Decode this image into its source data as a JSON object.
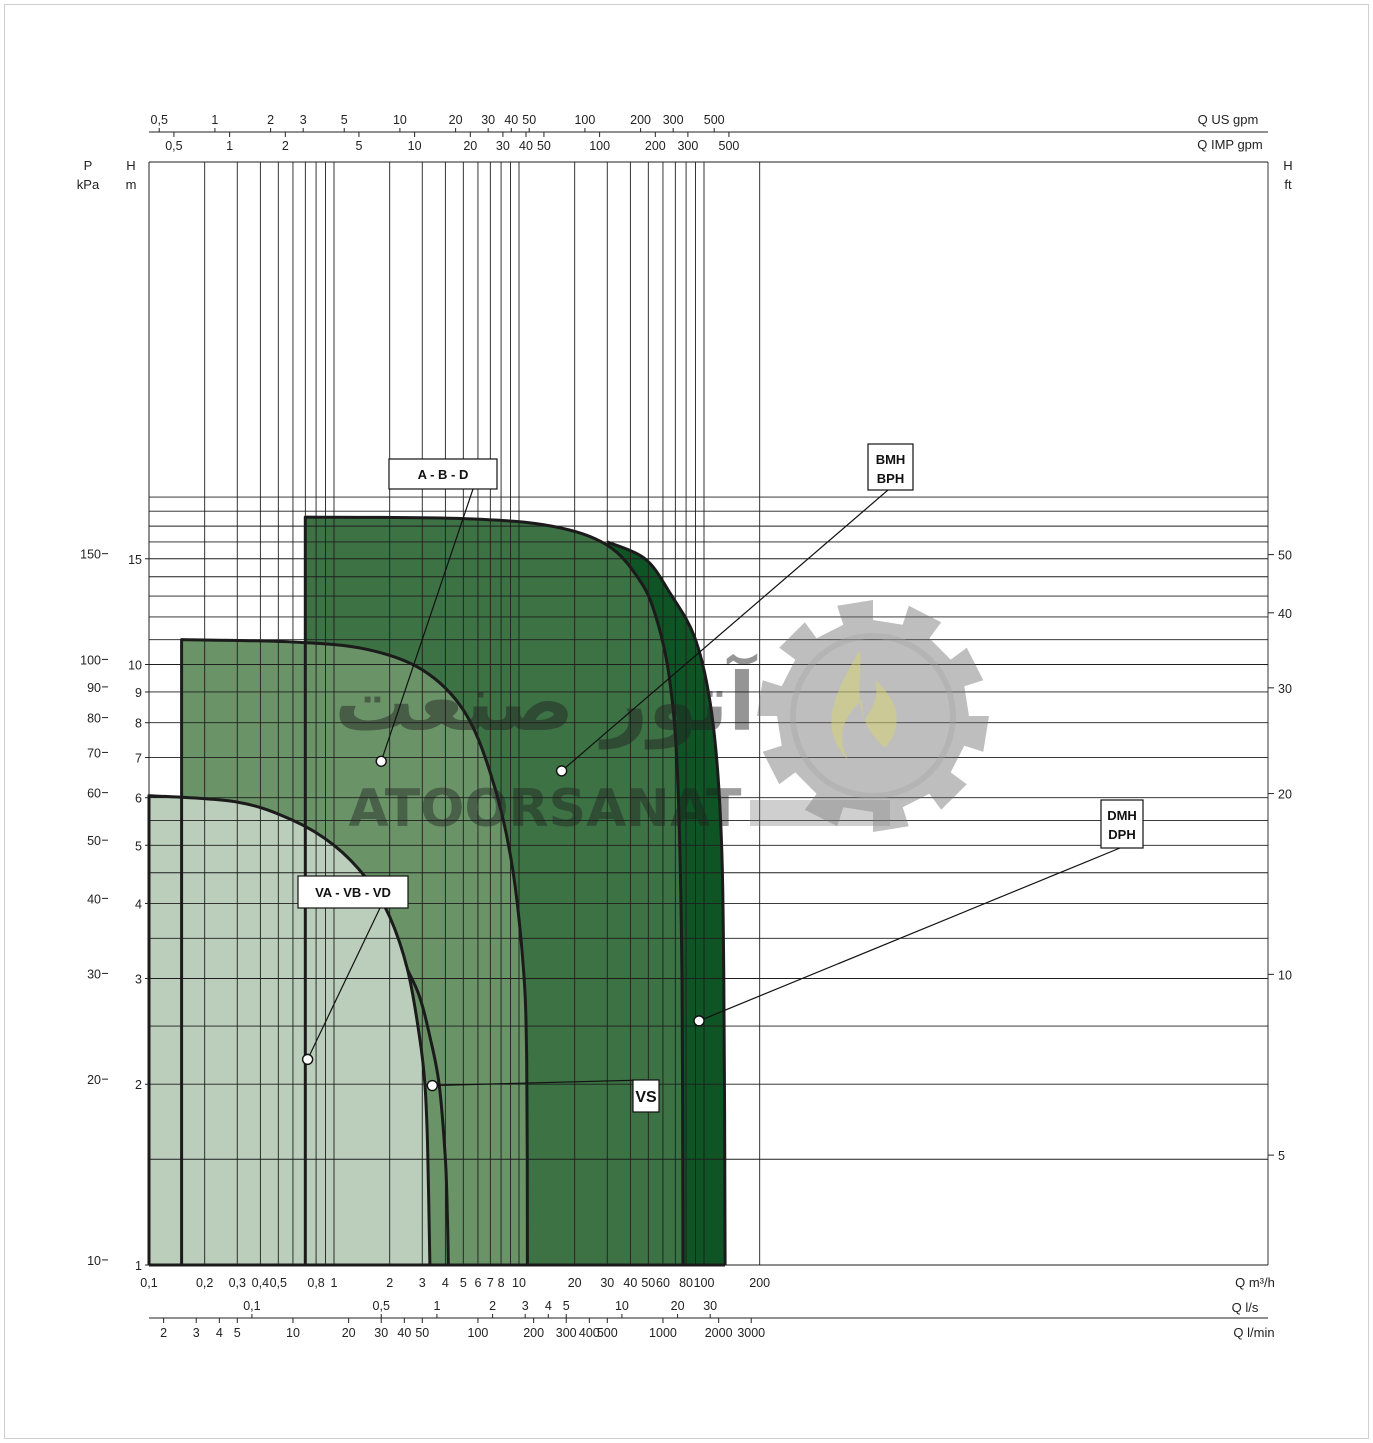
{
  "chart_data": {
    "type": "area",
    "title": "",
    "x_scale": "log",
    "y_scale": "log",
    "xlim": [
      0.1,
      250
    ],
    "ylim": [
      1,
      19
    ],
    "grid": true,
    "axes": {
      "bottom_primary": {
        "label": "Q m³/h",
        "ticks": [
          {
            "v": 0.1,
            "l": "0,1"
          },
          {
            "v": 0.2,
            "l": "0,2"
          },
          {
            "v": 0.3,
            "l": "0,3"
          },
          {
            "v": 0.4,
            "l": "0,4"
          },
          {
            "v": 0.5,
            "l": "0,5"
          },
          {
            "v": 0.8,
            "l": "0,8"
          },
          {
            "v": 1,
            "l": "1"
          },
          {
            "v": 2,
            "l": "2"
          },
          {
            "v": 3,
            "l": "3"
          },
          {
            "v": 4,
            "l": "4"
          },
          {
            "v": 5,
            "l": "5"
          },
          {
            "v": 6,
            "l": "6"
          },
          {
            "v": 7,
            "l": "7"
          },
          {
            "v": 8,
            "l": "8"
          },
          {
            "v": 10,
            "l": "10"
          },
          {
            "v": 20,
            "l": "20"
          },
          {
            "v": 30,
            "l": "30"
          },
          {
            "v": 40,
            "l": "40"
          },
          {
            "v": 50,
            "l": "50"
          },
          {
            "v": 60,
            "l": "60"
          },
          {
            "v": 80,
            "l": "80"
          },
          {
            "v": 100,
            "l": "100"
          },
          {
            "v": 200,
            "l": "200"
          }
        ]
      },
      "bottom_ls": {
        "label": "Q l/s",
        "ticks": [
          {
            "v": 0.1,
            "l": "0,1"
          },
          {
            "v": 0.5,
            "l": "0,5"
          },
          {
            "v": 1,
            "l": "1"
          },
          {
            "v": 2,
            "l": "2"
          },
          {
            "v": 3,
            "l": "3"
          },
          {
            "v": 4,
            "l": "4"
          },
          {
            "v": 5,
            "l": "5"
          },
          {
            "v": 10,
            "l": "10"
          },
          {
            "v": 20,
            "l": "20"
          },
          {
            "v": 30,
            "l": "30"
          }
        ]
      },
      "bottom_lmin": {
        "label": "Q l/min",
        "ticks": [
          {
            "v": 2,
            "l": "2"
          },
          {
            "v": 3,
            "l": "3"
          },
          {
            "v": 4,
            "l": "4"
          },
          {
            "v": 5,
            "l": "5"
          },
          {
            "v": 10,
            "l": "10"
          },
          {
            "v": 20,
            "l": "20"
          },
          {
            "v": 30,
            "l": "30"
          },
          {
            "v": 40,
            "l": "40"
          },
          {
            "v": 50,
            "l": "50"
          },
          {
            "v": 100,
            "l": "100"
          },
          {
            "v": 200,
            "l": "200"
          },
          {
            "v": 300,
            "l": "300"
          },
          {
            "v": 400,
            "l": "400"
          },
          {
            "v": 500,
            "l": "500"
          },
          {
            "v": 1000,
            "l": "1000"
          },
          {
            "v": 2000,
            "l": "2000"
          },
          {
            "v": 3000,
            "l": "3000"
          }
        ]
      },
      "top_us_gpm": {
        "label": "Q US gpm",
        "ticks": [
          {
            "v": 0.5,
            "l": "0,5"
          },
          {
            "v": 1,
            "l": "1"
          },
          {
            "v": 2,
            "l": "2"
          },
          {
            "v": 3,
            "l": "3"
          },
          {
            "v": 5,
            "l": "5"
          },
          {
            "v": 10,
            "l": "10"
          },
          {
            "v": 20,
            "l": "20"
          },
          {
            "v": 30,
            "l": "30"
          },
          {
            "v": 40,
            "l": "40"
          },
          {
            "v": 50,
            "l": "50"
          },
          {
            "v": 100,
            "l": "100"
          },
          {
            "v": 200,
            "l": "200"
          },
          {
            "v": 300,
            "l": "300"
          },
          {
            "v": 500,
            "l": "500"
          }
        ]
      },
      "top_imp_gpm": {
        "label": "Q IMP gpm",
        "ticks": [
          {
            "v": 0.5,
            "l": "0,5"
          },
          {
            "v": 1,
            "l": "1"
          },
          {
            "v": 2,
            "l": "2"
          },
          {
            "v": 5,
            "l": "5"
          },
          {
            "v": 10,
            "l": "10"
          },
          {
            "v": 20,
            "l": "20"
          },
          {
            "v": 30,
            "l": "30"
          },
          {
            "v": 40,
            "l": "40"
          },
          {
            "v": 50,
            "l": "50"
          },
          {
            "v": 100,
            "l": "100"
          },
          {
            "v": 200,
            "l": "200"
          },
          {
            "v": 300,
            "l": "300"
          },
          {
            "v": 500,
            "l": "500"
          }
        ]
      },
      "left_m": {
        "label_top": "H",
        "label_bottom": "m",
        "ticks": [
          {
            "v": 1,
            "l": "1"
          },
          {
            "v": 2,
            "l": "2"
          },
          {
            "v": 3,
            "l": "3"
          },
          {
            "v": 4,
            "l": "4"
          },
          {
            "v": 5,
            "l": "5"
          },
          {
            "v": 6,
            "l": "6"
          },
          {
            "v": 7,
            "l": "7"
          },
          {
            "v": 8,
            "l": "8"
          },
          {
            "v": 9,
            "l": "9"
          },
          {
            "v": 10,
            "l": "10"
          },
          {
            "v": 15,
            "l": "15"
          }
        ]
      },
      "left_kpa": {
        "label_top": "P",
        "label_bottom": "kPa",
        "ticks": [
          {
            "v": 10,
            "l": "10"
          },
          {
            "v": 20,
            "l": "20"
          },
          {
            "v": 30,
            "l": "30"
          },
          {
            "v": 40,
            "l": "40"
          },
          {
            "v": 50,
            "l": "50"
          },
          {
            "v": 60,
            "l": "60"
          },
          {
            "v": 70,
            "l": "70"
          },
          {
            "v": 80,
            "l": "80"
          },
          {
            "v": 90,
            "l": "90"
          },
          {
            "v": 100,
            "l": "100"
          },
          {
            "v": 150,
            "l": "150"
          }
        ]
      },
      "right_ft": {
        "label_top": "H",
        "label_bottom": "ft",
        "ticks": [
          {
            "v": 5,
            "l": "5"
          },
          {
            "v": 10,
            "l": "10"
          },
          {
            "v": 20,
            "l": "20"
          },
          {
            "v": 30,
            "l": "30"
          },
          {
            "v": 40,
            "l": "40"
          },
          {
            "v": 50,
            "l": "50"
          }
        ]
      }
    },
    "series": [
      {
        "name": "VA - VB - VD",
        "color": "#bacebb",
        "points": [
          [
            0.1,
            6.05
          ],
          [
            0.3,
            5.9
          ],
          [
            0.6,
            5.5
          ],
          [
            1.0,
            5.0
          ],
          [
            1.5,
            4.4
          ],
          [
            2.0,
            3.8
          ],
          [
            2.5,
            3.1
          ],
          [
            2.9,
            2.4
          ],
          [
            3.1,
            2.0
          ],
          [
            3.2,
            1.6
          ],
          [
            3.3,
            1.0
          ]
        ]
      },
      {
        "name": "A - B - D",
        "color": "#6a9468",
        "points": [
          [
            0.15,
            11.0
          ],
          [
            0.6,
            10.9
          ],
          [
            1.5,
            10.6
          ],
          [
            3.0,
            9.8
          ],
          [
            5.0,
            8.4
          ],
          [
            7.0,
            6.6
          ],
          [
            9.0,
            4.8
          ],
          [
            10.5,
            3.2
          ],
          [
            11.0,
            2.2
          ],
          [
            11.1,
            1.0
          ]
        ]
      },
      {
        "name": "BMH BPH",
        "color": "#3c7244",
        "points": [
          [
            0.7,
            17.6
          ],
          [
            5.0,
            17.5
          ],
          [
            15.0,
            17.0
          ],
          [
            30.0,
            15.8
          ],
          [
            45.0,
            13.8
          ],
          [
            55.0,
            12.0
          ],
          [
            65.0,
            9.5
          ],
          [
            72.0,
            6.5
          ],
          [
            76.0,
            3.0
          ],
          [
            77.0,
            1.0
          ]
        ]
      },
      {
        "name": "DMH DPH",
        "color": "#0e5425",
        "points": [
          [
            30.0,
            16.0
          ],
          [
            48.0,
            15.0
          ],
          [
            65.0,
            13.2
          ],
          [
            90.0,
            11.0
          ],
          [
            110.0,
            8.3
          ],
          [
            123.0,
            5.5
          ],
          [
            128.0,
            3.0
          ],
          [
            130.0,
            1.0
          ]
        ]
      },
      {
        "name": "VS",
        "color": "none",
        "points": [
          [
            2.5,
            3.1
          ],
          [
            2.9,
            2.8
          ],
          [
            3.3,
            2.4
          ],
          [
            3.7,
            2.0
          ],
          [
            4.0,
            1.5
          ],
          [
            4.1,
            1.2
          ],
          [
            4.15,
            1.0
          ]
        ]
      }
    ],
    "annotations": [
      {
        "label": "A - B - D",
        "x": 1.8,
        "y": 6.9
      },
      {
        "label": "BMH",
        "label2": "BPH",
        "x": 17.0,
        "y": 6.65
      },
      {
        "label": "DMH",
        "label2": "DPH",
        "x": 94.0,
        "y": 2.55
      },
      {
        "label": "VA - VB - VD",
        "x": 0.72,
        "y": 2.2
      },
      {
        "label": "VS",
        "x": 3.4,
        "y": 1.99
      }
    ]
  },
  "watermark": {
    "persian": "آتور صنعت",
    "latin": "ATOORSANAT",
    "gear_color": "#6b6b6b",
    "flame_color": "#c4c06a",
    "text_color": "#8c7c99"
  }
}
